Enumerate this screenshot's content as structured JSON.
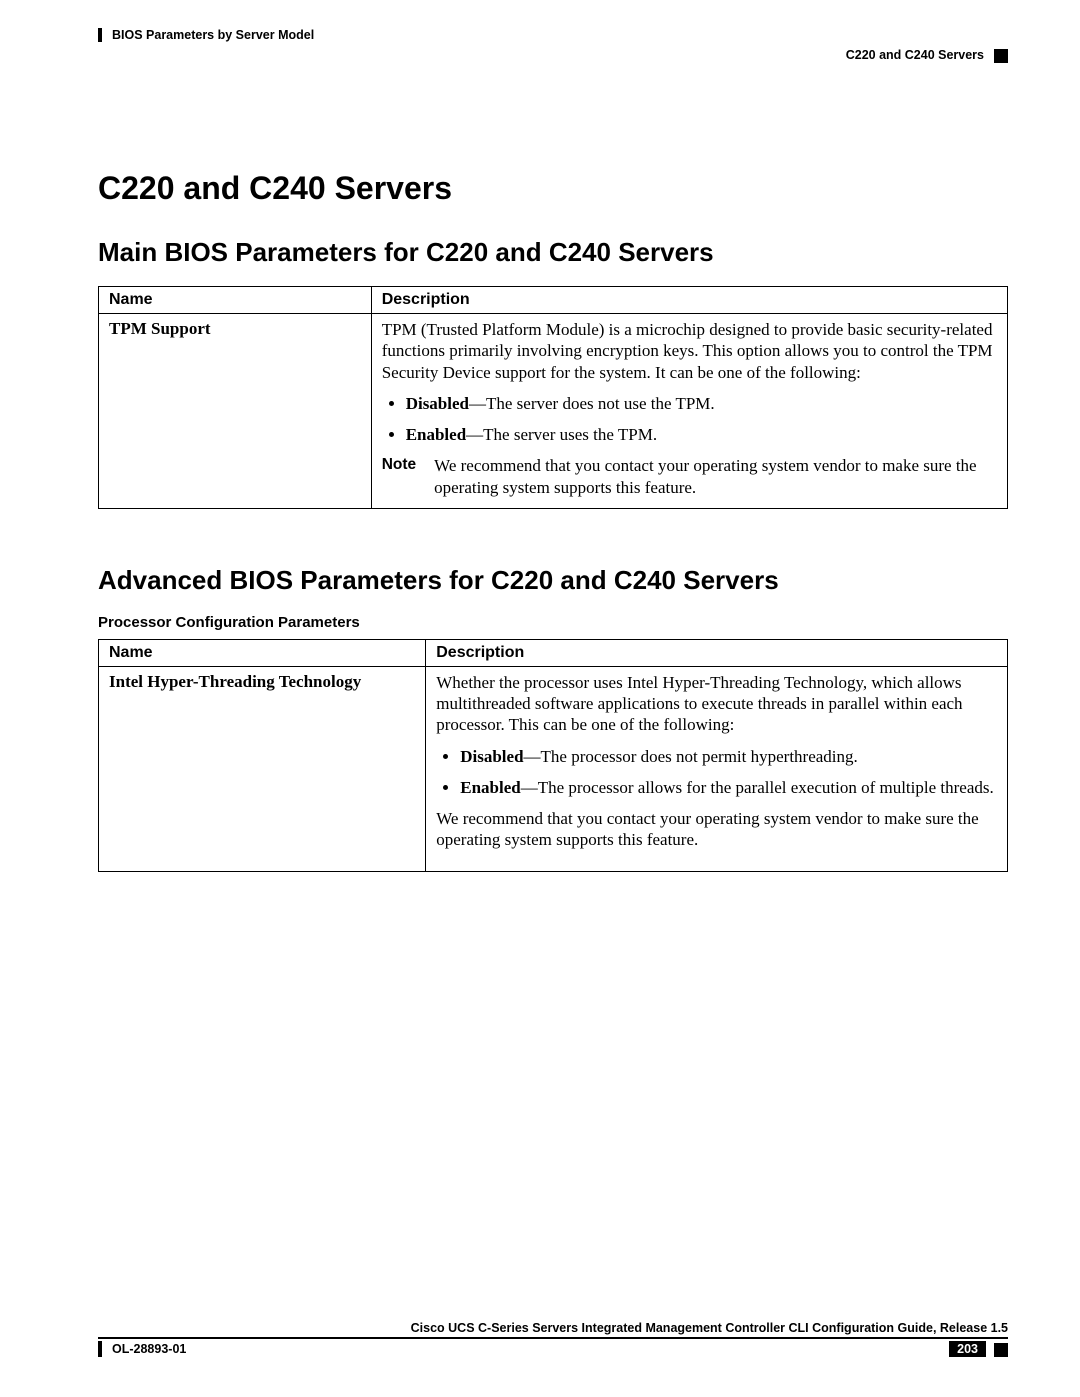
{
  "header": {
    "chapter": "BIOS Parameters by Server Model",
    "section": "C220 and C240 Servers"
  },
  "h1": "C220 and C240 Servers",
  "section1": {
    "title": "Main BIOS Parameters for C220 and C240 Servers",
    "columns": {
      "name": "Name",
      "desc": "Description"
    },
    "row": {
      "name": "TPM Support",
      "intro": "TPM (Trusted Platform Module) is a microchip designed to provide basic security-related functions primarily involving encryption keys. This option allows you to control the TPM Security Device support for the system. It can be one of the following:",
      "b1_label": "Disabled",
      "b1_text": "—The server does not use the TPM.",
      "b2_label": "Enabled",
      "b2_text": "—The server uses the TPM.",
      "note_label": "Note",
      "note_text": "We recommend that you contact your operating system vendor to make sure the operating system supports this feature."
    }
  },
  "section2": {
    "title": "Advanced BIOS Parameters for C220 and C240 Servers",
    "caption": "Processor Configuration Parameters",
    "columns": {
      "name": "Name",
      "desc": "Description"
    },
    "row": {
      "name": "Intel Hyper-Threading Technology",
      "intro": "Whether the processor uses Intel Hyper-Threading Technology, which allows multithreaded software applications to execute threads in parallel within each processor. This can be one of the following:",
      "b1_label": "Disabled",
      "b1_text": "—The processor does not permit hyperthreading.",
      "b2_label": "Enabled",
      "b2_text": "—The processor allows for the parallel execution of multiple threads.",
      "rec": "We recommend that you contact your operating system vendor to make sure the operating system supports this feature."
    }
  },
  "footer": {
    "guide": "Cisco UCS C-Series Servers Integrated Management Controller CLI Configuration Guide, Release 1.5",
    "doc": "OL-28893-01",
    "page": "203"
  }
}
